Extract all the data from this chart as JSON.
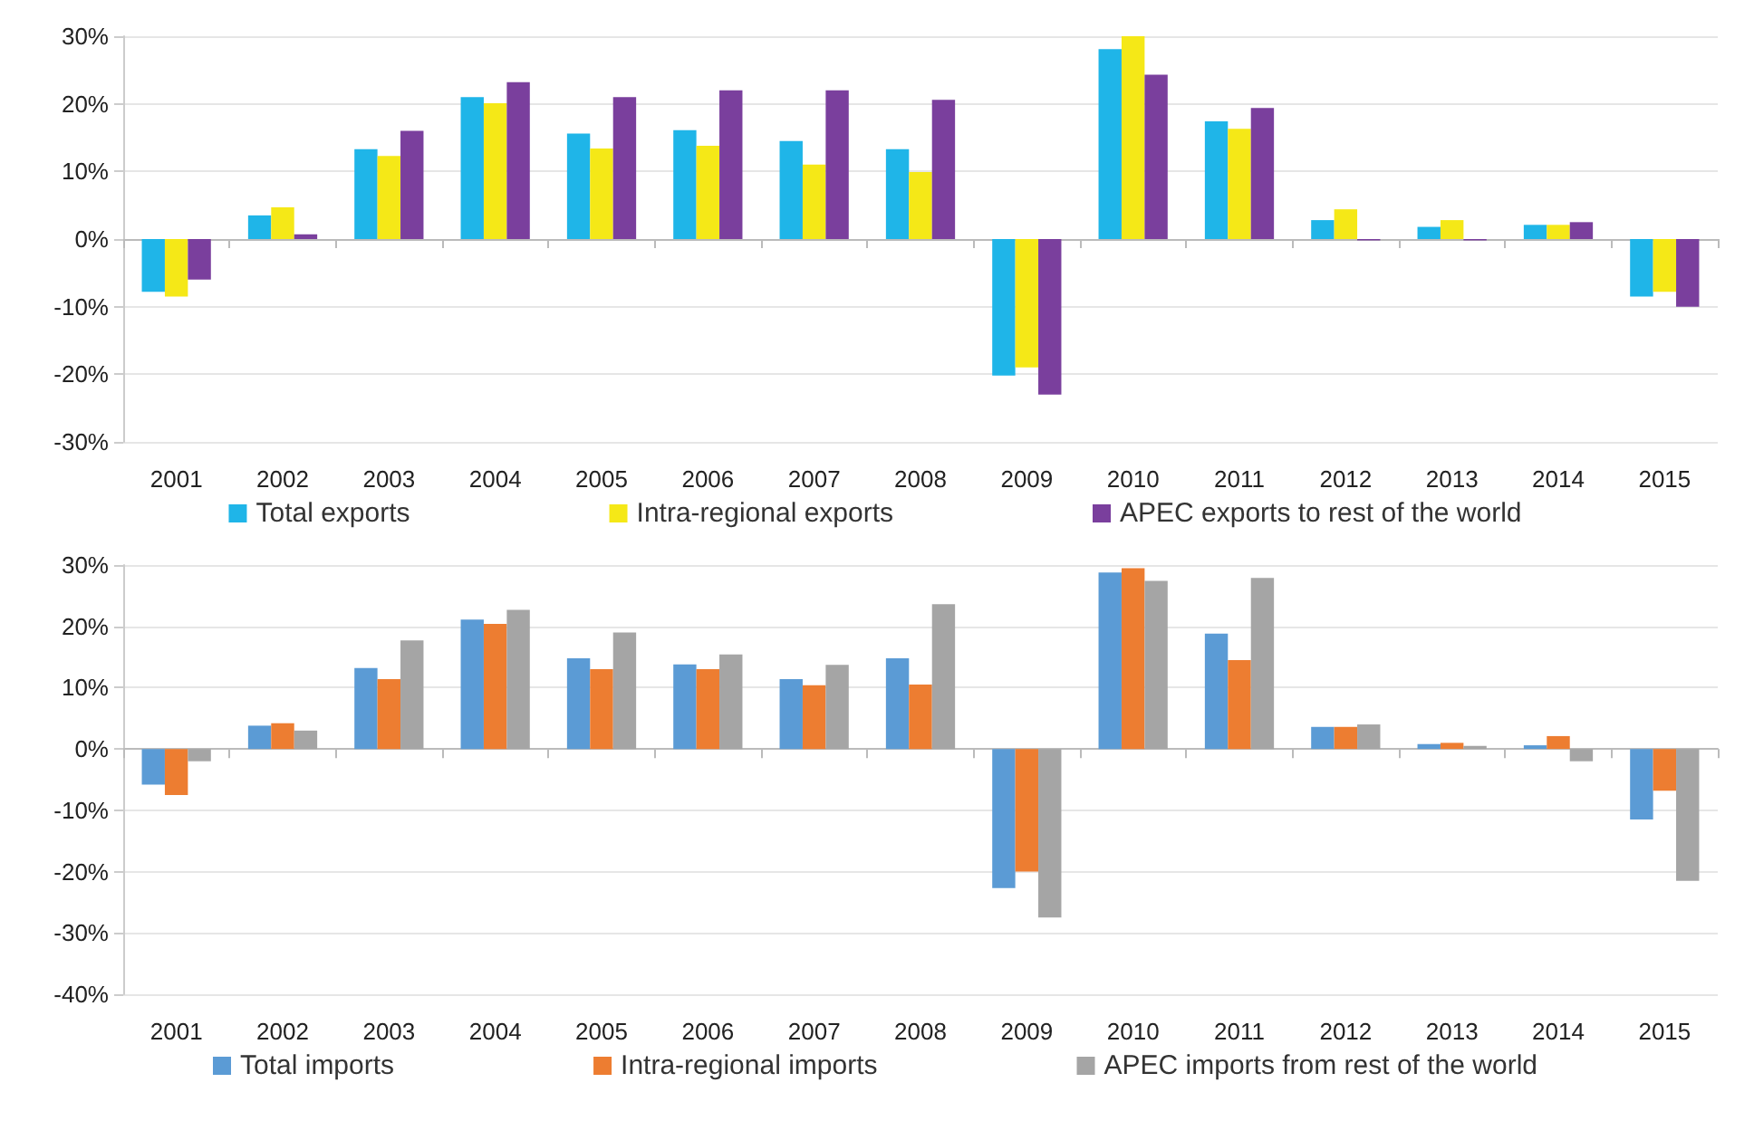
{
  "chart_data": [
    {
      "type": "bar",
      "categories": [
        "2001",
        "2002",
        "2003",
        "2004",
        "2005",
        "2006",
        "2007",
        "2008",
        "2009",
        "2010",
        "2011",
        "2012",
        "2013",
        "2014",
        "2015"
      ],
      "series": [
        {
          "name": "Total exports",
          "color": "#1fb5e8",
          "values": [
            -7.8,
            3.5,
            13.3,
            21,
            15.6,
            16.1,
            14.5,
            13.3,
            -20.2,
            28.1,
            17.4,
            2.8,
            1.8,
            2.1,
            -8.5
          ]
        },
        {
          "name": "Intra-regional exports",
          "color": "#f5e817",
          "values": [
            -8.5,
            4.7,
            12.3,
            20.1,
            13.4,
            13.8,
            11,
            9.9,
            -19,
            30,
            16.3,
            4.4,
            2.8,
            2.1,
            -7.8
          ]
        },
        {
          "name": "APEC exports to rest of the world",
          "color": "#7a3f9d",
          "values": [
            -6,
            0.7,
            16,
            23.2,
            21,
            22,
            22,
            20.6,
            -23,
            24.3,
            19.4,
            -0.2,
            -0.2,
            2.5,
            -10
          ]
        }
      ],
      "ylim": [
        -30,
        30
      ],
      "yticks": [
        {
          "value": -30,
          "label": "-30%"
        },
        {
          "value": -20,
          "label": "-20%"
        },
        {
          "value": -10,
          "label": "-10%"
        },
        {
          "value": 0,
          "label": "0%"
        },
        {
          "value": 10,
          "label": "10%"
        },
        {
          "value": 20,
          "label": "20%"
        },
        {
          "value": 30,
          "label": "30%"
        }
      ],
      "grid": "y",
      "legend": "bottom"
    },
    {
      "type": "bar",
      "categories": [
        "2001",
        "2002",
        "2003",
        "2004",
        "2005",
        "2006",
        "2007",
        "2008",
        "2009",
        "2010",
        "2011",
        "2012",
        "2013",
        "2014",
        "2015"
      ],
      "series": [
        {
          "name": "Total imports",
          "color": "#5b9bd5",
          "values": [
            -5.8,
            3.8,
            13.2,
            21.1,
            14.8,
            13.8,
            11.4,
            14.8,
            -22.7,
            28.8,
            18.8,
            3.6,
            0.8,
            0.6,
            -11.5
          ]
        },
        {
          "name": "Intra-regional imports",
          "color": "#ed7d31",
          "values": [
            -7.5,
            4.2,
            11.4,
            20.4,
            13,
            13,
            10.4,
            10.5,
            -20,
            29.5,
            14.5,
            3.6,
            1,
            2.1,
            -6.8
          ]
        },
        {
          "name": "APEC imports from rest of the world",
          "color": "#a5a5a5",
          "values": [
            -2,
            3,
            17.7,
            22.7,
            19,
            15.4,
            13.7,
            23.6,
            -27.5,
            27.4,
            27.9,
            4,
            0.5,
            -2,
            -21.5
          ]
        }
      ],
      "ylim": [
        -40,
        30
      ],
      "yticks": [
        {
          "value": -40,
          "label": "-40%"
        },
        {
          "value": -30,
          "label": "-30%"
        },
        {
          "value": -20,
          "label": "-20%"
        },
        {
          "value": -10,
          "label": "-10%"
        },
        {
          "value": 0,
          "label": "0%"
        },
        {
          "value": 10,
          "label": "10%"
        },
        {
          "value": 20,
          "label": "20%"
        },
        {
          "value": 30,
          "label": "30%"
        }
      ],
      "grid": "y",
      "legend": "bottom"
    }
  ]
}
